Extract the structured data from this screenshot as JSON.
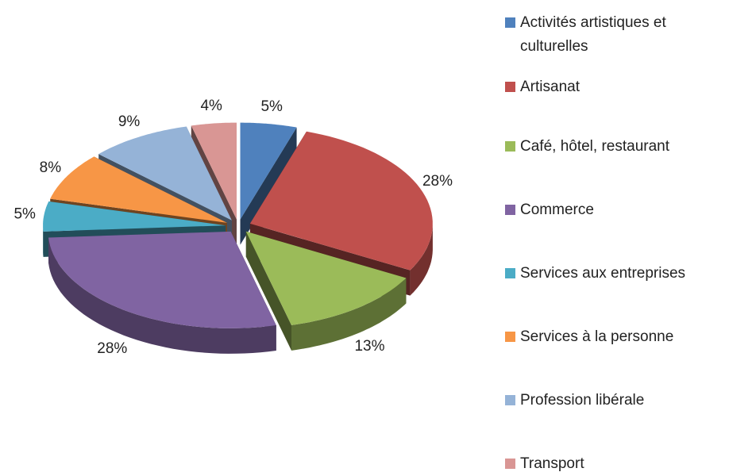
{
  "chart_data": {
    "type": "pie",
    "categories": [
      "Activités artistiques et culturelles",
      "Artisanat",
      "Café, hôtel, restaurant",
      "Commerce",
      "Services aux entreprises",
      "Services à la personne",
      "Profession libérale",
      "Transport"
    ],
    "values": [
      5,
      28,
      13,
      28,
      5,
      8,
      9,
      4
    ],
    "value_labels": [
      "5%",
      "28%",
      "13%",
      "28%",
      "5%",
      "8%",
      "9%",
      "4%"
    ],
    "colors": [
      "#4f81bd",
      "#c0504d",
      "#9bbb59",
      "#8064a2",
      "#4bacc6",
      "#f79646",
      "#95b3d7",
      "#d99694"
    ],
    "legend": "right"
  }
}
